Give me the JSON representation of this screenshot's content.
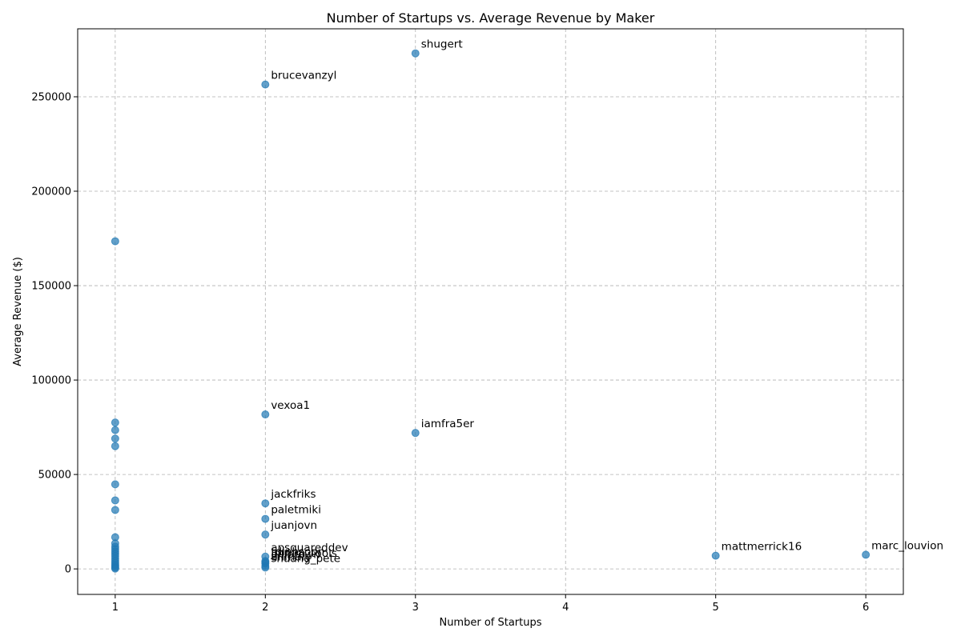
{
  "chart_data": {
    "type": "scatter",
    "title": "Number of Startups vs. Average Revenue by Maker",
    "xlabel": "Number of Startups",
    "ylabel": "Average Revenue ($)",
    "xlim": [
      0.75,
      6.25
    ],
    "ylim": [
      -13500,
      286000
    ],
    "xticks": [
      1,
      2,
      3,
      4,
      5,
      6
    ],
    "yticks": [
      0,
      50000,
      100000,
      150000,
      200000,
      250000
    ],
    "grid": true,
    "color": "#1f77b4",
    "points": [
      {
        "x": 3,
        "y": 273000,
        "label": "shugert"
      },
      {
        "x": 2,
        "y": 256500,
        "label": "brucevanzyl"
      },
      {
        "x": 2,
        "y": 81800,
        "label": "vexoa1"
      },
      {
        "x": 3,
        "y": 72000,
        "label": "iamfra5er"
      },
      {
        "x": 2,
        "y": 34700,
        "label": "jackfriks"
      },
      {
        "x": 2,
        "y": 26500,
        "label": "paletmiki"
      },
      {
        "x": 2,
        "y": 18200,
        "label": "juanjovn"
      },
      {
        "x": 2,
        "y": 6500,
        "label": "apsquareddev"
      },
      {
        "x": 2,
        "y": 4200,
        "label": "tdinhsoon"
      },
      {
        "x": 2,
        "y": 3500,
        "label": "jmmm_tools"
      },
      {
        "x": 2,
        "y": 2800,
        "label": "gillbrown"
      },
      {
        "x": 2,
        "y": 1500,
        "label": "ahmaly"
      },
      {
        "x": 2,
        "y": 700,
        "label": "shuang_pete"
      },
      {
        "x": 5,
        "y": 7000,
        "label": "mattmerrick16"
      },
      {
        "x": 6,
        "y": 7500,
        "label": "marc_louvion"
      },
      {
        "x": 1,
        "y": 173500
      },
      {
        "x": 1,
        "y": 77500
      },
      {
        "x": 1,
        "y": 73500
      },
      {
        "x": 1,
        "y": 69000
      },
      {
        "x": 1,
        "y": 65000
      },
      {
        "x": 1,
        "y": 44800
      },
      {
        "x": 1,
        "y": 36300
      },
      {
        "x": 1,
        "y": 31200
      },
      {
        "x": 1,
        "y": 16800
      },
      {
        "x": 1,
        "y": 13500
      },
      {
        "x": 1,
        "y": 11800
      },
      {
        "x": 1,
        "y": 10500
      },
      {
        "x": 1,
        "y": 9200
      },
      {
        "x": 1,
        "y": 8000
      },
      {
        "x": 1,
        "y": 6800
      },
      {
        "x": 1,
        "y": 5500
      },
      {
        "x": 1,
        "y": 4300
      },
      {
        "x": 1,
        "y": 3200
      },
      {
        "x": 1,
        "y": 2200
      },
      {
        "x": 1,
        "y": 1400
      },
      {
        "x": 1,
        "y": 700
      },
      {
        "x": 1,
        "y": 200
      }
    ]
  }
}
